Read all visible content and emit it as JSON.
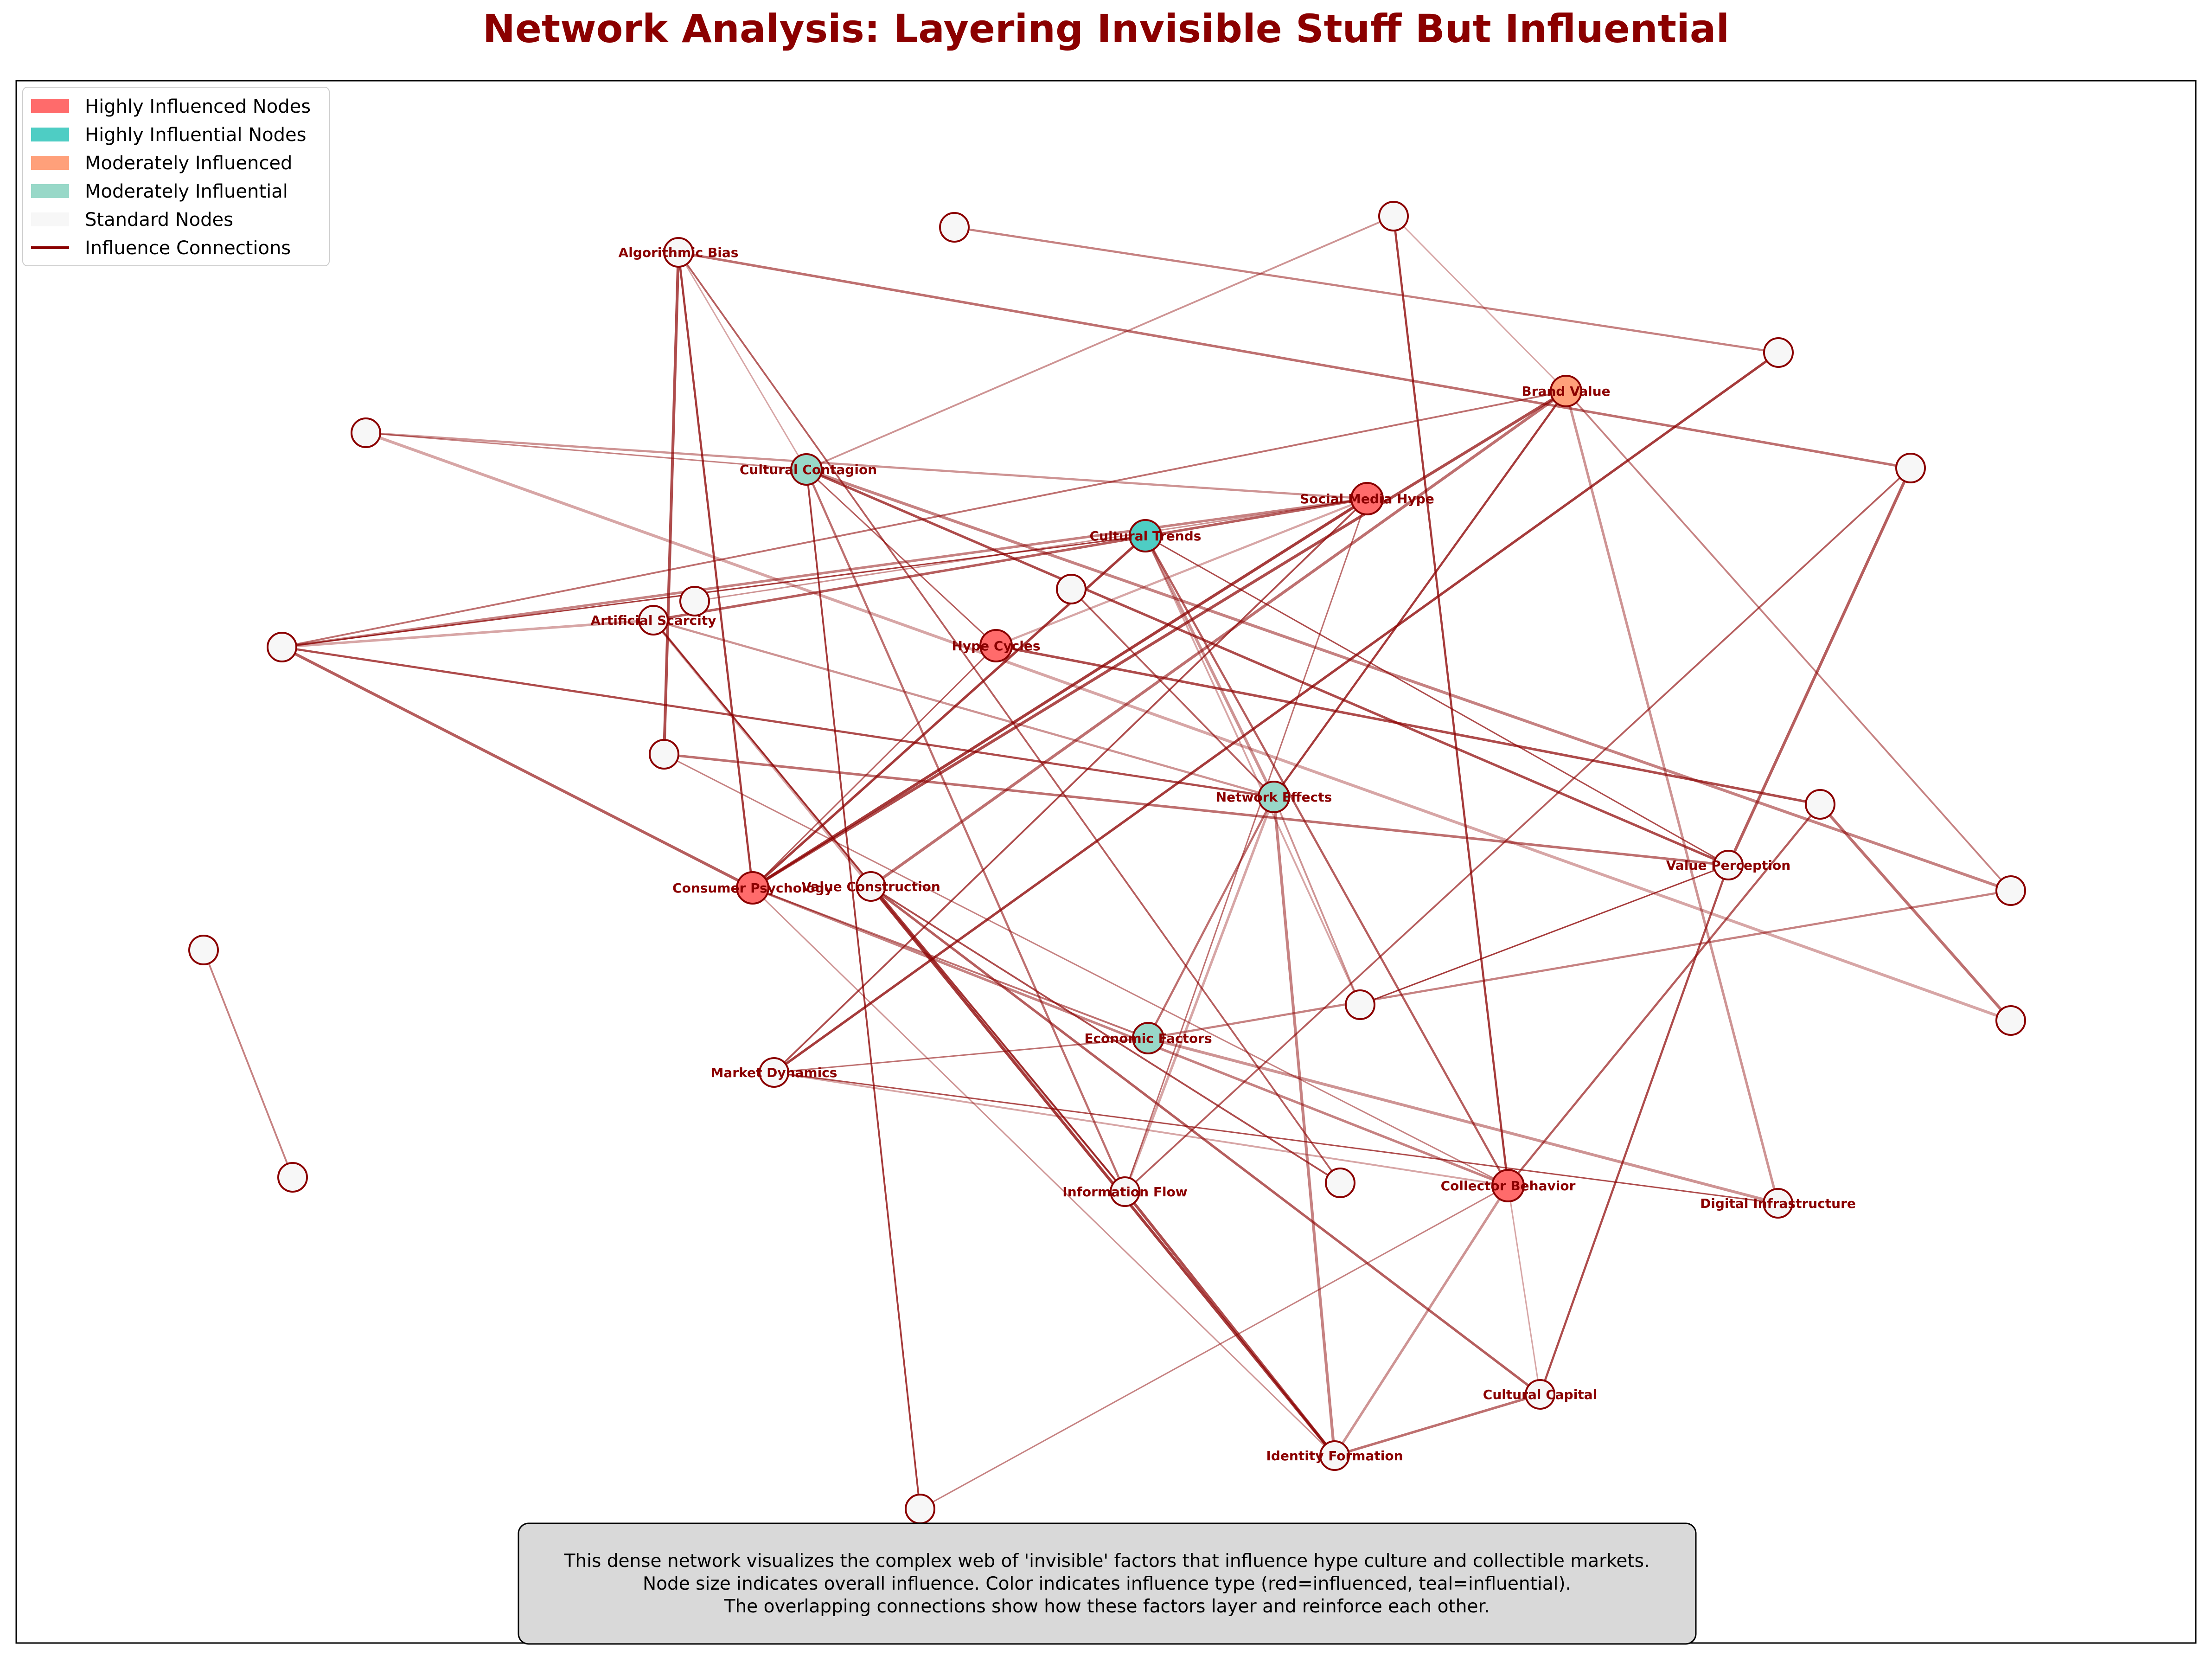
{
  "title": "Network Analysis: Layering Invisible Stuff But Influential",
  "legend": [
    {
      "label": "Highly Influenced Nodes",
      "kind": "patch",
      "color": "#ff6b6b"
    },
    {
      "label": "Highly Influential Nodes",
      "kind": "patch",
      "color": "#4ecdc4"
    },
    {
      "label": "Moderately Influenced",
      "kind": "patch",
      "color": "#ffa07a"
    },
    {
      "label": "Moderately Influential",
      "kind": "patch",
      "color": "#98d8c8"
    },
    {
      "label": "Standard Nodes",
      "kind": "patch",
      "color": "#f7f7f7"
    },
    {
      "label": "Influence Connections",
      "kind": "line",
      "color": "#8b0000"
    }
  ],
  "caption": [
    "This dense network visualizes the complex web of 'invisible' factors that influence hype culture and collectible markets.",
    "Node size indicates overall influence. Color indicates influence type (red=influenced, teal=influential).",
    "The overlapping connections show how these factors layer and reinforce each other."
  ],
  "colors": {
    "highly_influenced": "#ff6b6b",
    "highly_influential": "#4ecdc4",
    "moderately_influenced": "#ffa07a",
    "moderately_influential": "#98d8c8",
    "standard": "#f7f7f7",
    "edge": "#8b0000",
    "node_border": "#8b0000"
  },
  "nodes": [
    {
      "id": "algo",
      "label": "Algorithmic Bias",
      "type": "standard"
    },
    {
      "id": "brand",
      "label": "Brand Value",
      "type": "moderately_influenced"
    },
    {
      "id": "contagion",
      "label": "Cultural Contagion",
      "type": "moderately_influential"
    },
    {
      "id": "social",
      "label": "Social Media Hype",
      "type": "highly_influenced"
    },
    {
      "id": "trends",
      "label": "Cultural Trends",
      "type": "highly_influential"
    },
    {
      "id": "scarcity",
      "label": "Artificial Scarcity",
      "type": "standard"
    },
    {
      "id": "hype",
      "label": "Hype Cycles",
      "type": "highly_influenced"
    },
    {
      "id": "neteff",
      "label": "Network Effects",
      "type": "moderately_influential"
    },
    {
      "id": "valperc",
      "label": "Value Perception",
      "type": "standard"
    },
    {
      "id": "consumer",
      "label": "Consumer Psychology",
      "type": "highly_influenced"
    },
    {
      "id": "valcon",
      "label": "Value Construction",
      "type": "standard"
    },
    {
      "id": "econ",
      "label": "Economic Factors",
      "type": "moderately_influential"
    },
    {
      "id": "market",
      "label": "Market Dynamics",
      "type": "standard"
    },
    {
      "id": "info",
      "label": "Information Flow",
      "type": "standard"
    },
    {
      "id": "collector",
      "label": "Collector Behavior",
      "type": "highly_influenced"
    },
    {
      "id": "digital",
      "label": "Digital Infrastructure",
      "type": "standard"
    },
    {
      "id": "capital",
      "label": "Cultural Capital",
      "type": "standard"
    },
    {
      "id": "identity",
      "label": "Identity Formation",
      "type": "standard"
    },
    {
      "id": "u1",
      "label": "",
      "type": "standard"
    },
    {
      "id": "u2",
      "label": "",
      "type": "standard"
    },
    {
      "id": "u3",
      "label": "",
      "type": "standard"
    },
    {
      "id": "u4",
      "label": "",
      "type": "standard"
    },
    {
      "id": "u5",
      "label": "",
      "type": "standard"
    },
    {
      "id": "u6",
      "label": "",
      "type": "standard"
    },
    {
      "id": "u7",
      "label": "",
      "type": "standard"
    },
    {
      "id": "u8",
      "label": "",
      "type": "standard"
    },
    {
      "id": "u9",
      "label": "",
      "type": "standard"
    },
    {
      "id": "u10",
      "label": "",
      "type": "standard"
    },
    {
      "id": "u11",
      "label": "",
      "type": "standard"
    },
    {
      "id": "u12",
      "label": "",
      "type": "standard"
    },
    {
      "id": "u13",
      "label": "",
      "type": "standard"
    },
    {
      "id": "u14",
      "label": "",
      "type": "standard"
    },
    {
      "id": "u15",
      "label": "",
      "type": "standard"
    },
    {
      "id": "u16",
      "label": "",
      "type": "standard"
    },
    {
      "id": "u17",
      "label": "",
      "type": "standard"
    }
  ],
  "edges": [
    [
      "algo",
      "contagion"
    ],
    [
      "algo",
      "consumer"
    ],
    [
      "algo",
      "u3"
    ],
    [
      "algo",
      "u6"
    ],
    [
      "algo",
      "u12"
    ],
    [
      "u1",
      "contagion"
    ],
    [
      "u1",
      "social"
    ],
    [
      "u1",
      "u11"
    ],
    [
      "contagion",
      "u15"
    ],
    [
      "contagion",
      "valperc"
    ],
    [
      "contagion",
      "hype"
    ],
    [
      "contagion",
      "info"
    ],
    [
      "contagion",
      "u10"
    ],
    [
      "contagion",
      "u14"
    ],
    [
      "u2",
      "scarcity"
    ],
    [
      "u2",
      "trends"
    ],
    [
      "u2",
      "neteff"
    ],
    [
      "u2",
      "consumer"
    ],
    [
      "u2",
      "brand"
    ],
    [
      "u2",
      "social"
    ],
    [
      "social",
      "u16"
    ],
    [
      "social",
      "hype"
    ],
    [
      "social",
      "consumer"
    ],
    [
      "social",
      "market"
    ],
    [
      "social",
      "scarcity"
    ],
    [
      "social",
      "info"
    ],
    [
      "u4",
      "u13"
    ],
    [
      "trends",
      "neteff"
    ],
    [
      "trends",
      "u5"
    ],
    [
      "trends",
      "consumer"
    ],
    [
      "trends",
      "valperc"
    ],
    [
      "trends",
      "collector"
    ],
    [
      "brand",
      "valcon"
    ],
    [
      "brand",
      "u10"
    ],
    [
      "brand",
      "digital"
    ],
    [
      "brand",
      "u14"
    ],
    [
      "brand",
      "neteff"
    ],
    [
      "brand",
      "consumer"
    ],
    [
      "u17",
      "neteff"
    ],
    [
      "u3",
      "valperc"
    ],
    [
      "u3",
      "collector"
    ],
    [
      "scarcity",
      "neteff"
    ],
    [
      "scarcity",
      "valcon"
    ],
    [
      "scarcity",
      "info"
    ],
    [
      "hype",
      "u9"
    ],
    [
      "hype",
      "consumer"
    ],
    [
      "neteff",
      "econ"
    ],
    [
      "neteff",
      "identity"
    ],
    [
      "neteff",
      "u5"
    ],
    [
      "neteff",
      "info"
    ],
    [
      "valperc",
      "u5"
    ],
    [
      "valperc",
      "capital"
    ],
    [
      "valperc",
      "u12"
    ],
    [
      "consumer",
      "econ"
    ],
    [
      "consumer",
      "collector"
    ],
    [
      "consumer",
      "identity"
    ],
    [
      "valcon",
      "info"
    ],
    [
      "valcon",
      "identity"
    ],
    [
      "valcon",
      "u6"
    ],
    [
      "valcon",
      "capital"
    ],
    [
      "econ",
      "market"
    ],
    [
      "econ",
      "u10"
    ],
    [
      "econ",
      "digital"
    ],
    [
      "market",
      "collector"
    ],
    [
      "market",
      "u13"
    ],
    [
      "market",
      "digital"
    ],
    [
      "u9",
      "collector"
    ],
    [
      "u9",
      "u11"
    ],
    [
      "u7",
      "u8"
    ],
    [
      "collector",
      "identity"
    ],
    [
      "collector",
      "capital"
    ],
    [
      "collector",
      "u14"
    ],
    [
      "info",
      "identity"
    ],
    [
      "info",
      "u12"
    ],
    [
      "identity",
      "capital"
    ],
    [
      "u15",
      "collector"
    ]
  ]
}
